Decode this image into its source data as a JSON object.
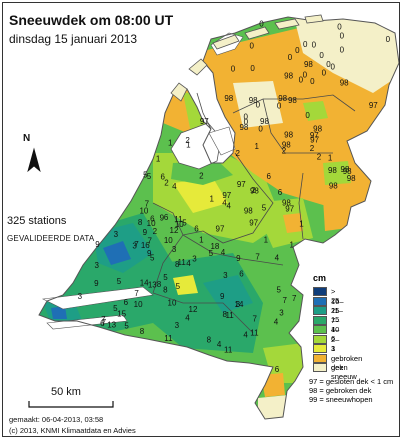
{
  "title": "Sneeuwdek om 08:00 UT",
  "subtitle": "dinsdag 15 januari 2013",
  "stations_label": "325 stations",
  "validated_label": "GEVALIDEERDE DATA",
  "north_label": "N",
  "scale_label": "50 km",
  "made_label": "gemaakt: 06-04-2013, 03:58",
  "copyright": "(c) 2013, KNMI Klimaatdata en Advies",
  "legend": {
    "unit": "cm",
    "items": [
      {
        "label": "> 25",
        "color": "#0f3d7a"
      },
      {
        "label": "16–25",
        "color": "#1f6fb5"
      },
      {
        "label": "11–15",
        "color": "#1e9e86"
      },
      {
        "label": "7–10",
        "color": "#2aa86a"
      },
      {
        "label": "4–6",
        "color": "#5cc04e"
      },
      {
        "label": "2–3",
        "color": "#a4d83a"
      },
      {
        "label": "1",
        "color": "#e6ea3a"
      },
      {
        "label": "gebroken dek",
        "color": "#f2b233"
      },
      {
        "label": "geen sneeuw",
        "color": "#f4f0c8"
      }
    ],
    "notes": [
      "97 = gesloten dek < 1 cm",
      "98 = gebroken dek",
      "99 = sneeuwhopen"
    ]
  },
  "colors": {
    "sea": "#ffffff",
    "water": "#ffffff",
    "border": "#555555",
    "province_line": "#4a4a4a"
  },
  "station_values": [
    "0",
    "0",
    "0",
    "0",
    "0",
    "0",
    "0",
    "0",
    "0",
    "0",
    "0",
    "0",
    "0",
    "0",
    "0",
    "0",
    "0",
    "0",
    "0",
    "0",
    "0",
    "98",
    "98",
    "98",
    "98",
    "98",
    "98",
    "98",
    "98",
    "98",
    "98",
    "98",
    "98",
    "98",
    "98",
    "98",
    "98",
    "98",
    "98",
    "97",
    "97",
    "97",
    "97",
    "97",
    "97",
    "97",
    "97",
    "1",
    "1",
    "1",
    "1",
    "1",
    "1",
    "1",
    "1",
    "1",
    "1",
    "2",
    "2",
    "2",
    "2",
    "2",
    "2",
    "2",
    "2",
    "3",
    "3",
    "3",
    "3",
    "3",
    "3",
    "3",
    "3",
    "3",
    "4",
    "4",
    "4",
    "4",
    "4",
    "4",
    "4",
    "4",
    "4",
    "4",
    "5",
    "5",
    "5",
    "5",
    "5",
    "5",
    "5",
    "5",
    "5",
    "5",
    "5",
    "5",
    "6",
    "6",
    "6",
    "6",
    "6",
    "6",
    "6",
    "6",
    "6",
    "6",
    "7",
    "7",
    "7",
    "7",
    "7",
    "7",
    "7",
    "7",
    "7",
    "7",
    "8",
    "8",
    "8",
    "8",
    "8",
    "8",
    "8",
    "9",
    "9",
    "9",
    "9",
    "9",
    "9",
    "9",
    "10",
    "10",
    "10",
    "10",
    "10",
    "10",
    "11",
    "11",
    "11",
    "11",
    "11",
    "11",
    "12",
    "12",
    "13",
    "13",
    "14",
    "14",
    "15",
    "16",
    "18",
    "0",
    "0",
    "98",
    "98",
    "97",
    "3",
    "2",
    "0",
    "0"
  ]
}
